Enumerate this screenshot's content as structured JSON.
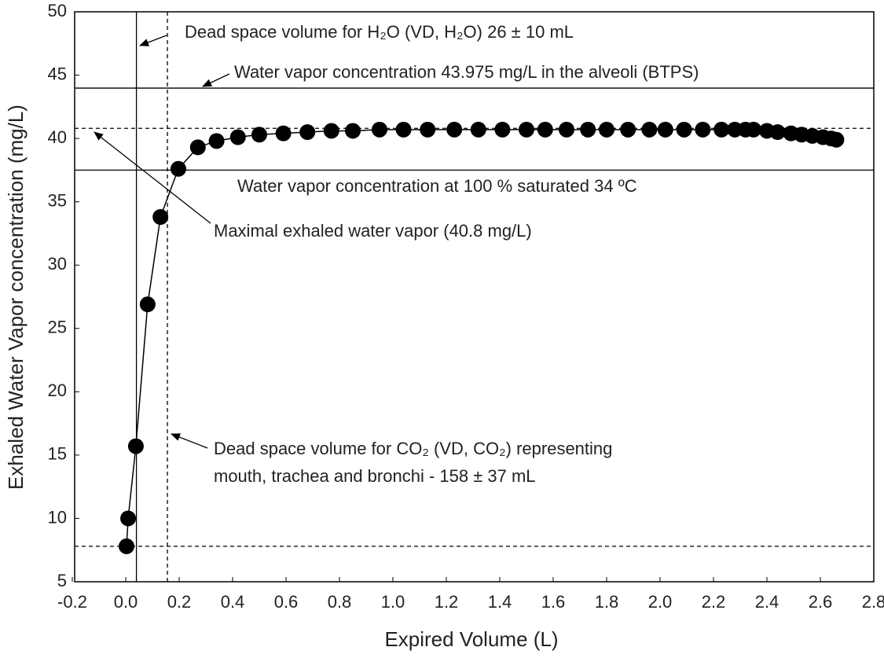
{
  "chart_data": {
    "type": "line",
    "xlabel": "Expired Volume (L)",
    "ylabel": "Exhaled Water Vapor concentration (mg/L)",
    "xlim": [
      -0.2,
      2.8
    ],
    "ylim": [
      5,
      50
    ],
    "xticks": [
      -0.2,
      {
        "value": 0,
        "label": "0.0"
      },
      0.2,
      0.4,
      0.6,
      0.8,
      {
        "value": 1,
        "label": "1.0"
      },
      1.2,
      1.4,
      1.6,
      1.8,
      {
        "value": 2,
        "label": "2.0"
      },
      2.2,
      2.4,
      2.6,
      2.8
    ],
    "yticks": [
      5,
      10,
      15,
      20,
      25,
      30,
      35,
      40,
      45,
      50
    ],
    "color": "#000000",
    "series": [
      {
        "color": "#000000",
        "x": [
          0.003,
          0.009,
          0.038,
          0.082,
          0.13,
          0.197,
          0.27,
          0.34,
          0.42,
          0.5,
          0.59,
          0.68,
          0.77,
          0.85,
          0.95,
          1.04,
          1.13,
          1.23,
          1.32,
          1.41,
          1.5,
          1.57,
          1.65,
          1.73,
          1.8,
          1.88,
          1.96,
          2.02,
          2.09,
          2.16,
          2.23,
          2.28,
          2.32,
          2.35,
          2.4,
          2.44,
          2.49,
          2.53,
          2.57,
          2.61,
          2.64,
          2.66
        ],
        "values": [
          7.8,
          10.0,
          15.7,
          26.9,
          33.8,
          37.6,
          39.3,
          39.8,
          40.1,
          40.3,
          40.4,
          40.5,
          40.6,
          40.6,
          40.7,
          40.7,
          40.7,
          40.7,
          40.7,
          40.7,
          40.7,
          40.7,
          40.7,
          40.7,
          40.7,
          40.7,
          40.7,
          40.7,
          40.7,
          40.7,
          40.7,
          40.7,
          40.7,
          40.7,
          40.6,
          40.5,
          40.4,
          40.3,
          40.2,
          40.1,
          40.0,
          39.9
        ]
      }
    ],
    "reference_lines": [
      {
        "axis": "y",
        "value": 43.975,
        "style": "solid"
      },
      {
        "axis": "y",
        "value": 40.8,
        "style": "dashed"
      },
      {
        "axis": "y",
        "value": 37.5,
        "style": "solid"
      },
      {
        "axis": "y",
        "value": 7.8,
        "style": "dashed"
      },
      {
        "axis": "x",
        "value": 0.04,
        "style": "solid"
      },
      {
        "axis": "x",
        "value": 0.156,
        "style": "dashed"
      }
    ],
    "annotations": [
      {
        "lines": [
          "Dead space volume for H₂O (VD, H₂O) 26 ± 10 mL"
        ]
      },
      {
        "lines": [
          "Water vapor concentration 43.975 mg/L in the alveoli (BTPS)"
        ]
      },
      {
        "lines": [
          "Water vapor concentration at 100 % saturated 34 ºC"
        ]
      },
      {
        "lines": [
          "Maximal exhaled water vapor (40.8 mg/L)"
        ]
      },
      {
        "lines": [
          "Dead space volume for CO₂ (VD, CO₂) representing",
          "mouth, trachea and bronchi - 158 ± 37 mL"
        ]
      }
    ]
  }
}
